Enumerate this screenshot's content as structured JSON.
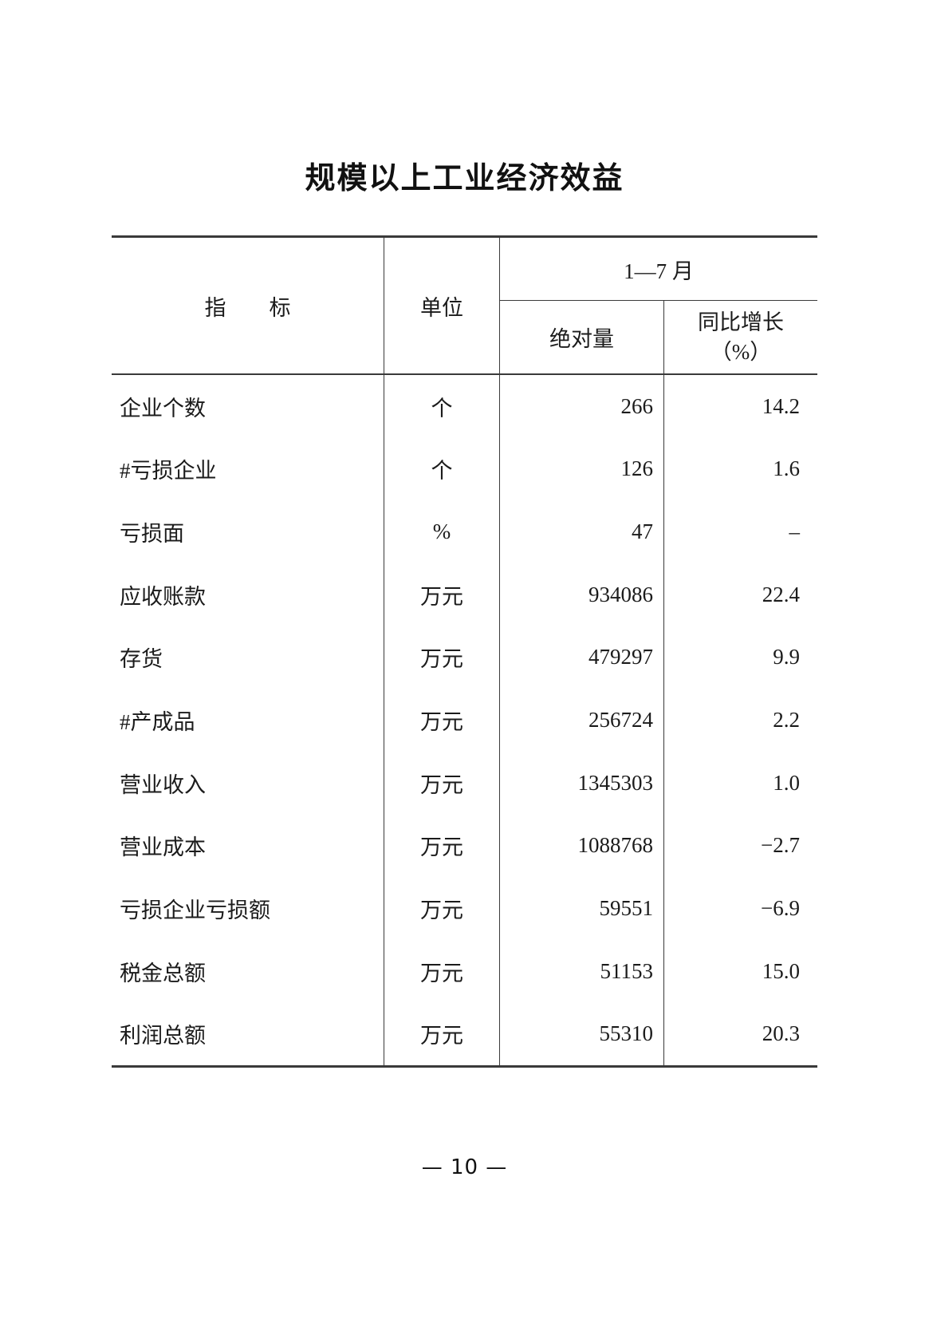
{
  "page": {
    "title": "规模以上工业经济效益",
    "footer": "— 10 —"
  },
  "table": {
    "header": {
      "indicator": "指　　标",
      "unit": "单位",
      "period": "1—7 月",
      "absolute": "绝对量",
      "yoy_line1": "同比增长",
      "yoy_line2": "（%）"
    },
    "rows": [
      {
        "indicator": "企业个数",
        "unit": "个",
        "absolute": "266",
        "yoy": "14.2"
      },
      {
        "indicator": "#亏损企业",
        "unit": "个",
        "absolute": "126",
        "yoy": "1.6"
      },
      {
        "indicator": "亏损面",
        "unit": "%",
        "absolute": "47",
        "yoy": "–"
      },
      {
        "indicator": "应收账款",
        "unit": "万元",
        "absolute": "934086",
        "yoy": "22.4"
      },
      {
        "indicator": "存货",
        "unit": "万元",
        "absolute": "479297",
        "yoy": "9.9"
      },
      {
        "indicator": "#产成品",
        "unit": "万元",
        "absolute": "256724",
        "yoy": "2.2"
      },
      {
        "indicator": "营业收入",
        "unit": "万元",
        "absolute": "1345303",
        "yoy": "1.0"
      },
      {
        "indicator": "营业成本",
        "unit": "万元",
        "absolute": "1088768",
        "yoy": "−2.7"
      },
      {
        "indicator": "亏损企业亏损额",
        "unit": "万元",
        "absolute": "59551",
        "yoy": "−6.9"
      },
      {
        "indicator": "税金总额",
        "unit": "万元",
        "absolute": "51153",
        "yoy": "15.0"
      },
      {
        "indicator": "利润总额",
        "unit": "万元",
        "absolute": "55310",
        "yoy": "20.3"
      }
    ],
    "ink_color": "#1b1b1b",
    "rule_color": "#3a3a3a"
  }
}
